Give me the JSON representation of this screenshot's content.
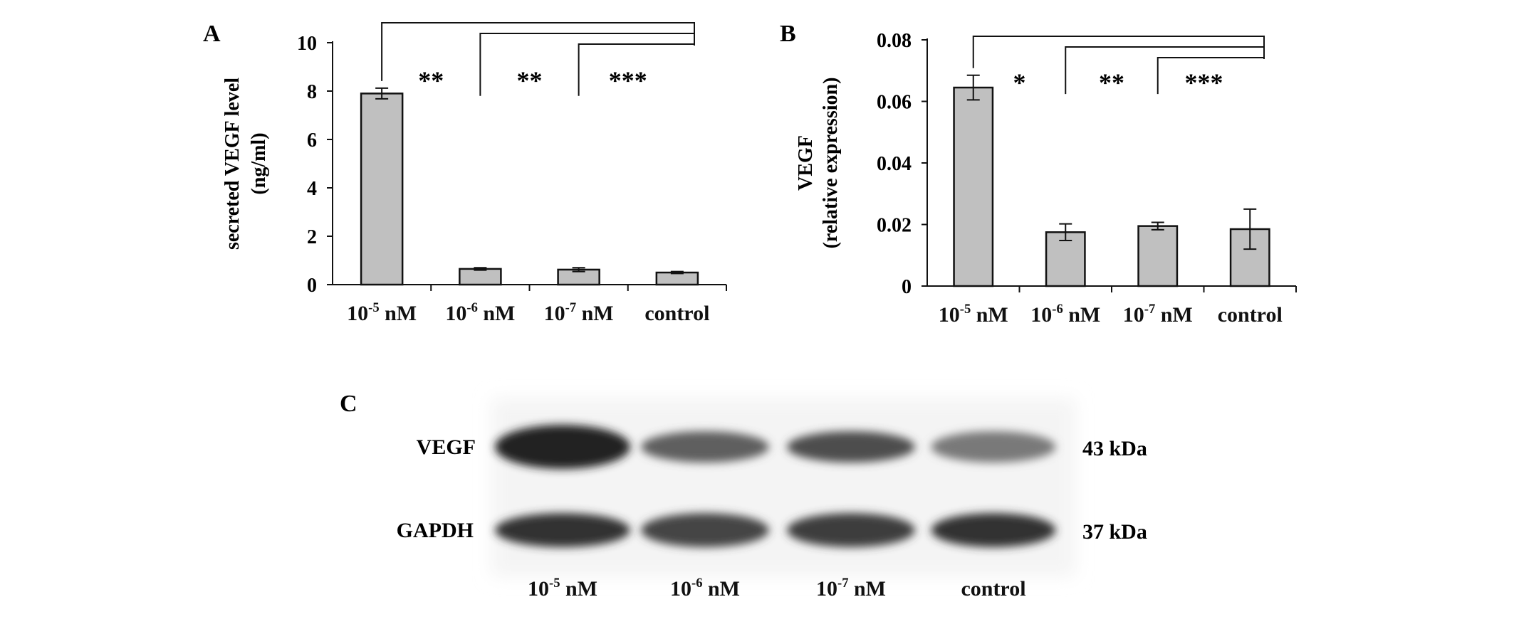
{
  "panels": {
    "a": {
      "letter": "A"
    },
    "b": {
      "letter": "B"
    },
    "c": {
      "letter": "C"
    }
  },
  "colors": {
    "bar_fill": "#c0c0c0",
    "axis": "#111111",
    "band": "#2a2a2a"
  },
  "chart_data": [
    {
      "id": "A",
      "type": "bar",
      "categories": [
        "10-5 nM",
        "10-6 nM",
        "10-7 nM",
        "control"
      ],
      "category_labels": [
        {
          "base": "10",
          "exp": "-5",
          "unit": " nM"
        },
        {
          "base": "10",
          "exp": "-6",
          "unit": " nM"
        },
        {
          "base": "10",
          "exp": "-7",
          "unit": " nM"
        },
        {
          "base": "control",
          "exp": "",
          "unit": ""
        }
      ],
      "values": [
        7.9,
        0.65,
        0.62,
        0.5
      ],
      "errors": [
        0.22,
        0.05,
        0.08,
        0.04
      ],
      "ylabel": "secreted VEGF level",
      "ylabel_unit": "(ng/ml)",
      "ylim": [
        0,
        10
      ],
      "yticks": [
        "0",
        "2",
        "4",
        "6",
        "8",
        "10"
      ],
      "significance": [
        "**",
        "**",
        "***"
      ]
    },
    {
      "id": "B",
      "type": "bar",
      "categories": [
        "10-5 nM",
        "10-6 nM",
        "10-7 nM",
        "control"
      ],
      "category_labels": [
        {
          "base": "10",
          "exp": "-5",
          "unit": " nM"
        },
        {
          "base": "10",
          "exp": "-6",
          "unit": " nM"
        },
        {
          "base": "10",
          "exp": "-7",
          "unit": " nM"
        },
        {
          "base": "control",
          "exp": "",
          "unit": ""
        }
      ],
      "values": [
        0.0645,
        0.0175,
        0.0195,
        0.0185
      ],
      "errors": [
        0.004,
        0.0027,
        0.0012,
        0.0065
      ],
      "ylabel": "VEGF",
      "ylabel_unit": "(relative expression)",
      "ylim": [
        0,
        0.08
      ],
      "yticks": [
        "0",
        "0.02",
        "0.04",
        "0.06",
        "0.08"
      ],
      "significance": [
        "*",
        "**",
        "***"
      ]
    }
  ],
  "blot": {
    "rows": [
      {
        "label": "VEGF",
        "size": "43 kDa",
        "intensity": [
          0.95,
          0.6,
          0.7,
          0.45
        ]
      },
      {
        "label": "GAPDH",
        "size": "37 kDa",
        "intensity": [
          0.85,
          0.75,
          0.8,
          0.85
        ]
      }
    ],
    "lane_labels": [
      {
        "base": "10",
        "exp": "-5",
        "unit": " nM"
      },
      {
        "base": "10",
        "exp": "-6",
        "unit": " nM"
      },
      {
        "base": "10",
        "exp": "-7",
        "unit": " nM"
      },
      {
        "base": "control",
        "exp": "",
        "unit": ""
      }
    ]
  }
}
